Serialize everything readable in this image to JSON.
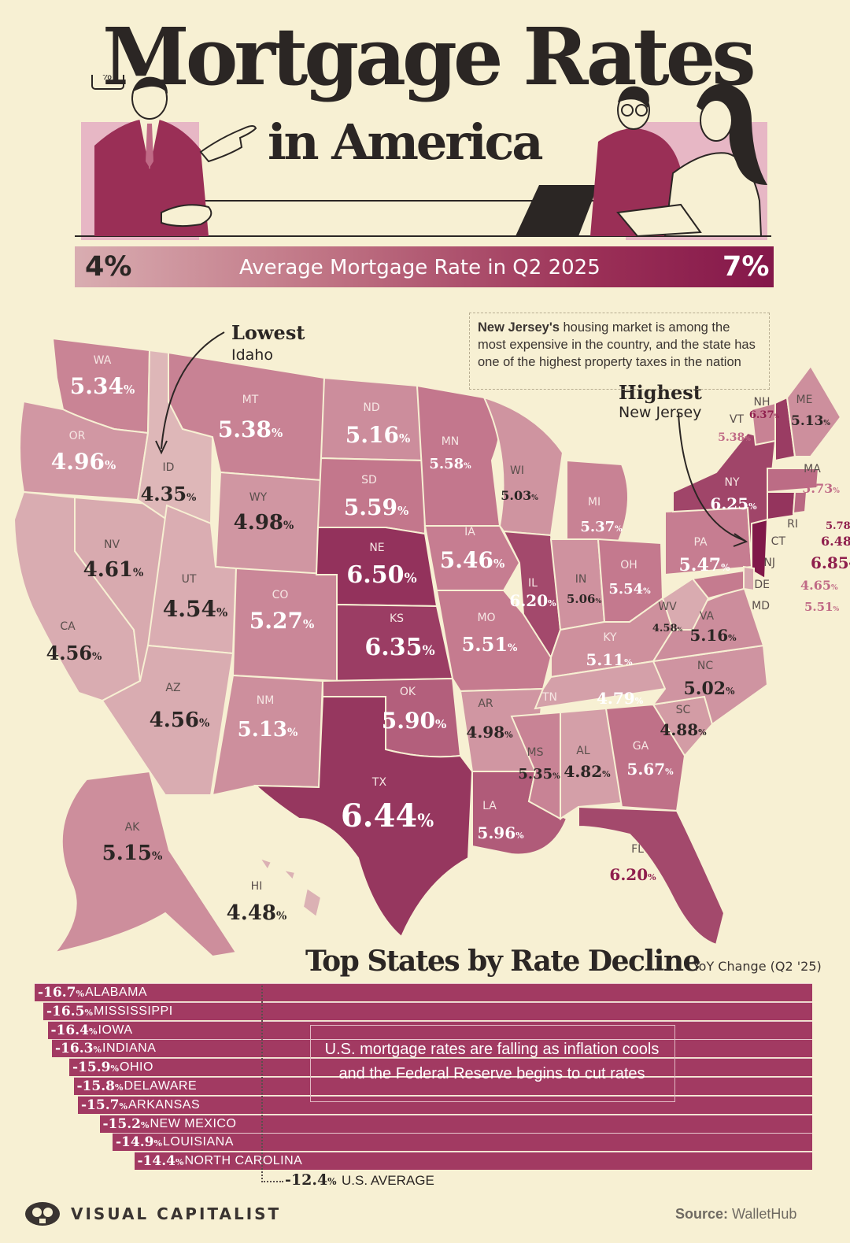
{
  "header": {
    "title_line1": "Mortgage Rates",
    "title_line2": "in America",
    "legend_min": "4%",
    "legend_max": "7%",
    "legend_caption": "Average Mortgage Rate in Q2 2025",
    "colors": {
      "low": "#d9adb1",
      "mid": "#c07585",
      "high": "#84174a",
      "background": "#f7f0d3"
    }
  },
  "annotations": {
    "lowest_heading": "Lowest",
    "lowest_state": "Idaho",
    "highest_heading": "Highest",
    "highest_state": "New Jersey",
    "note_bold": "New Jersey's",
    "note_rest": " housing market is among the most expensive in the country, and the state has one of the highest property taxes in the nation"
  },
  "states": [
    {
      "abbr": "WA",
      "rate": "5.34"
    },
    {
      "abbr": "OR",
      "rate": "4.96"
    },
    {
      "abbr": "CA",
      "rate": "4.56"
    },
    {
      "abbr": "NV",
      "rate": "4.61"
    },
    {
      "abbr": "ID",
      "rate": "4.35"
    },
    {
      "abbr": "MT",
      "rate": "5.38"
    },
    {
      "abbr": "WY",
      "rate": "4.98"
    },
    {
      "abbr": "UT",
      "rate": "4.54"
    },
    {
      "abbr": "AZ",
      "rate": "4.56"
    },
    {
      "abbr": "CO",
      "rate": "5.27"
    },
    {
      "abbr": "NM",
      "rate": "5.13"
    },
    {
      "abbr": "ND",
      "rate": "5.16"
    },
    {
      "abbr": "SD",
      "rate": "5.59"
    },
    {
      "abbr": "NE",
      "rate": "6.50"
    },
    {
      "abbr": "KS",
      "rate": "6.35"
    },
    {
      "abbr": "OK",
      "rate": "5.90"
    },
    {
      "abbr": "TX",
      "rate": "6.44"
    },
    {
      "abbr": "MN",
      "rate": "5.58"
    },
    {
      "abbr": "IA",
      "rate": "5.46"
    },
    {
      "abbr": "MO",
      "rate": "5.51"
    },
    {
      "abbr": "AR",
      "rate": "4.98"
    },
    {
      "abbr": "LA",
      "rate": "5.96"
    },
    {
      "abbr": "WI",
      "rate": "5.03"
    },
    {
      "abbr": "IL",
      "rate": "6.20"
    },
    {
      "abbr": "MI",
      "rate": "5.37"
    },
    {
      "abbr": "IN",
      "rate": "5.06"
    },
    {
      "abbr": "OH",
      "rate": "5.54"
    },
    {
      "abbr": "KY",
      "rate": "5.11"
    },
    {
      "abbr": "TN",
      "rate": "4.79"
    },
    {
      "abbr": "MS",
      "rate": "5.35"
    },
    {
      "abbr": "AL",
      "rate": "4.82"
    },
    {
      "abbr": "GA",
      "rate": "5.67"
    },
    {
      "abbr": "FL",
      "rate": "6.20"
    },
    {
      "abbr": "SC",
      "rate": "4.88"
    },
    {
      "abbr": "NC",
      "rate": "5.02"
    },
    {
      "abbr": "VA",
      "rate": "5.16"
    },
    {
      "abbr": "WV",
      "rate": "4.58"
    },
    {
      "abbr": "PA",
      "rate": "5.47"
    },
    {
      "abbr": "NY",
      "rate": "6.25"
    },
    {
      "abbr": "VT",
      "rate": "5.38"
    },
    {
      "abbr": "NH",
      "rate": "6.37"
    },
    {
      "abbr": "ME",
      "rate": "5.13"
    },
    {
      "abbr": "MA",
      "rate": "5.73"
    },
    {
      "abbr": "RI",
      "rate": "5.78"
    },
    {
      "abbr": "CT",
      "rate": "6.48"
    },
    {
      "abbr": "NJ",
      "rate": "6.85"
    },
    {
      "abbr": "DE",
      "rate": "4.65"
    },
    {
      "abbr": "MD",
      "rate": "5.51"
    },
    {
      "abbr": "AK",
      "rate": "5.15"
    },
    {
      "abbr": "HI",
      "rate": "4.48"
    }
  ],
  "decline": {
    "title": "Top States by Rate Decline",
    "subtitle": "YoY Change (Q2 '25)",
    "rows": [
      {
        "value": "-16.7",
        "state": "ALABAMA"
      },
      {
        "value": "-16.5",
        "state": "MISSISSIPPI"
      },
      {
        "value": "-16.4",
        "state": "IOWA"
      },
      {
        "value": "-16.3",
        "state": "INDIANA"
      },
      {
        "value": "-15.9",
        "state": "OHIO"
      },
      {
        "value": "-15.8",
        "state": "DELAWARE"
      },
      {
        "value": "-15.7",
        "state": "ARKANSAS"
      },
      {
        "value": "-15.2",
        "state": "NEW MEXICO"
      },
      {
        "value": "-14.9",
        "state": "LOUISIANA"
      },
      {
        "value": "-14.4",
        "state": "NORTH CAROLINA"
      }
    ],
    "average_value": "-12.4",
    "average_label": "U.S. AVERAGE",
    "note": "U.S. mortgage rates are falling as inflation cools and the Federal Reserve begins to cut rates"
  },
  "footer": {
    "brand": "VISUAL CAPITALIST",
    "source_label": "Source:",
    "source_name": "WalletHub"
  }
}
